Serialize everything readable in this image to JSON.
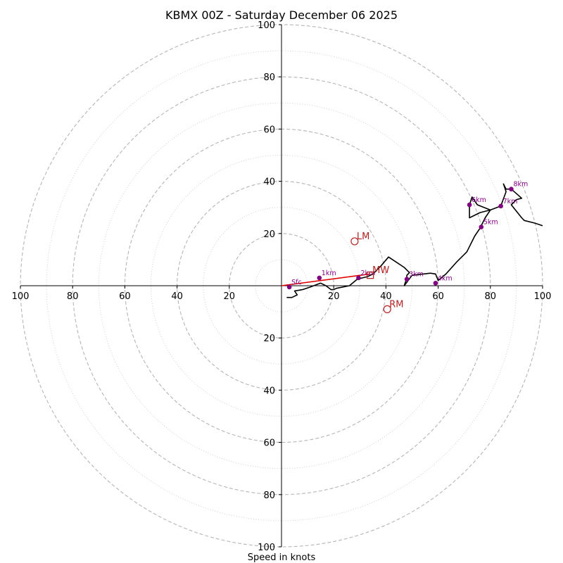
{
  "chart_data": {
    "type": "hodograph",
    "title": "KBMX 00Z - Saturday December 06 2025",
    "xlabel": "Speed in knots",
    "max_speed": 100,
    "ring_major": [
      20,
      40,
      60,
      80,
      100
    ],
    "ring_minor": [
      10,
      30,
      50,
      70,
      90
    ],
    "tick_labels": {
      "left": [
        "100",
        "80",
        "60",
        "40",
        "20"
      ],
      "right": [
        "20",
        "40",
        "60",
        "80",
        "100"
      ],
      "top": [
        "20",
        "40",
        "60",
        "80",
        "100"
      ],
      "bottom": [
        "20",
        "40",
        "60",
        "80",
        "100"
      ]
    },
    "wind_trace_uv": [
      [
        2,
        -4.5
      ],
      [
        4,
        -4.5
      ],
      [
        5,
        -4
      ],
      [
        6,
        -3.5
      ],
      [
        5,
        -2
      ],
      [
        8,
        -1.5
      ],
      [
        11,
        -0.5
      ],
      [
        15,
        1
      ],
      [
        17,
        0
      ],
      [
        19,
        -1.5
      ],
      [
        20,
        -1.5
      ],
      [
        21,
        -1
      ],
      [
        26,
        0
      ],
      [
        29,
        2.5
      ],
      [
        31,
        3
      ],
      [
        33,
        3.5
      ],
      [
        35,
        4.5
      ],
      [
        38,
        7.5
      ],
      [
        41,
        11
      ],
      [
        44,
        9
      ],
      [
        47,
        7
      ],
      [
        49,
        5
      ],
      [
        48,
        4
      ],
      [
        48,
        3
      ],
      [
        47,
        0
      ],
      [
        50,
        4
      ],
      [
        57,
        4.8
      ],
      [
        59,
        4.5
      ],
      [
        60,
        2
      ],
      [
        63,
        4.5
      ],
      [
        67,
        9
      ],
      [
        71,
        13
      ],
      [
        74,
        19
      ],
      [
        76,
        22
      ],
      [
        78,
        26
      ],
      [
        80,
        29
      ],
      [
        76,
        28
      ],
      [
        72,
        26
      ],
      [
        72,
        31
      ],
      [
        73,
        34
      ],
      [
        75,
        31
      ],
      [
        80,
        29
      ],
      [
        84,
        30.5
      ],
      [
        86,
        36
      ],
      [
        85,
        39
      ],
      [
        86,
        37
      ],
      [
        88,
        37
      ],
      [
        92,
        33.5
      ],
      [
        90,
        33
      ],
      [
        88,
        31
      ],
      [
        92,
        26
      ],
      [
        93,
        25
      ],
      [
        97,
        24
      ],
      [
        100,
        23
      ]
    ],
    "height_markers": [
      {
        "label": "Sfc",
        "u": 3,
        "v": -0.5
      },
      {
        "label": "1km",
        "u": 14.5,
        "v": 3
      },
      {
        "label": "2km",
        "u": 29.5,
        "v": 3
      },
      {
        "label": "3km",
        "u": 48,
        "v": 2.5
      },
      {
        "label": "4km",
        "u": 59,
        "v": 1
      },
      {
        "label": "5km",
        "u": 76.5,
        "v": 22.5
      },
      {
        "label": "6km",
        "u": 72,
        "v": 31
      },
      {
        "label": "7km",
        "u": 84,
        "v": 30.5
      },
      {
        "label": "8km",
        "u": 88,
        "v": 37
      }
    ],
    "shear_vector": {
      "from": [
        0,
        0
      ],
      "to": [
        34,
        4.5
      ]
    },
    "storm_motion": [
      {
        "label": "LM",
        "u": 28,
        "v": 17,
        "shape": "circle"
      },
      {
        "label": "RM",
        "u": 40.5,
        "v": -9,
        "shape": "circle"
      },
      {
        "label": "MW",
        "u": 34,
        "v": 4,
        "shape": "square"
      }
    ],
    "colors": {
      "trace": "#000000",
      "markers": "#800080",
      "motion": "#b22222",
      "shear": "#e00000",
      "major_ring": "#b5b5b5",
      "minor_ring": "#cfcfcf"
    }
  }
}
